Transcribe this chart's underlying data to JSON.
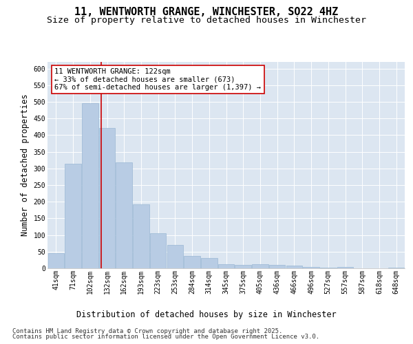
{
  "title": "11, WENTWORTH GRANGE, WINCHESTER, SO22 4HZ",
  "subtitle": "Size of property relative to detached houses in Winchester",
  "xlabel": "Distribution of detached houses by size in Winchester",
  "ylabel": "Number of detached properties",
  "categories": [
    "41sqm",
    "71sqm",
    "102sqm",
    "132sqm",
    "162sqm",
    "193sqm",
    "223sqm",
    "253sqm",
    "284sqm",
    "314sqm",
    "345sqm",
    "375sqm",
    "405sqm",
    "436sqm",
    "466sqm",
    "496sqm",
    "527sqm",
    "557sqm",
    "587sqm",
    "618sqm",
    "648sqm"
  ],
  "values": [
    45,
    315,
    497,
    422,
    319,
    192,
    105,
    70,
    38,
    30,
    13,
    10,
    13,
    10,
    8,
    5,
    2,
    4,
    1,
    0,
    3
  ],
  "bar_color": "#b8cce4",
  "bar_edge_color": "#9ab8d4",
  "vline_color": "#cc0000",
  "annotation_text": "11 WENTWORTH GRANGE: 122sqm\n← 33% of detached houses are smaller (673)\n67% of semi-detached houses are larger (1,397) →",
  "annotation_box_color": "#ffffff",
  "annotation_box_edge": "#cc0000",
  "ylim": [
    0,
    620
  ],
  "yticks": [
    0,
    50,
    100,
    150,
    200,
    250,
    300,
    350,
    400,
    450,
    500,
    550,
    600
  ],
  "plot_bg_color": "#dce6f1",
  "footer_line1": "Contains HM Land Registry data © Crown copyright and database right 2025.",
  "footer_line2": "Contains public sector information licensed under the Open Government Licence v3.0.",
  "title_fontsize": 11,
  "subtitle_fontsize": 9.5,
  "axis_label_fontsize": 8.5,
  "tick_fontsize": 7,
  "annotation_fontsize": 7.5,
  "footer_fontsize": 6.5,
  "vline_position": 2.667
}
